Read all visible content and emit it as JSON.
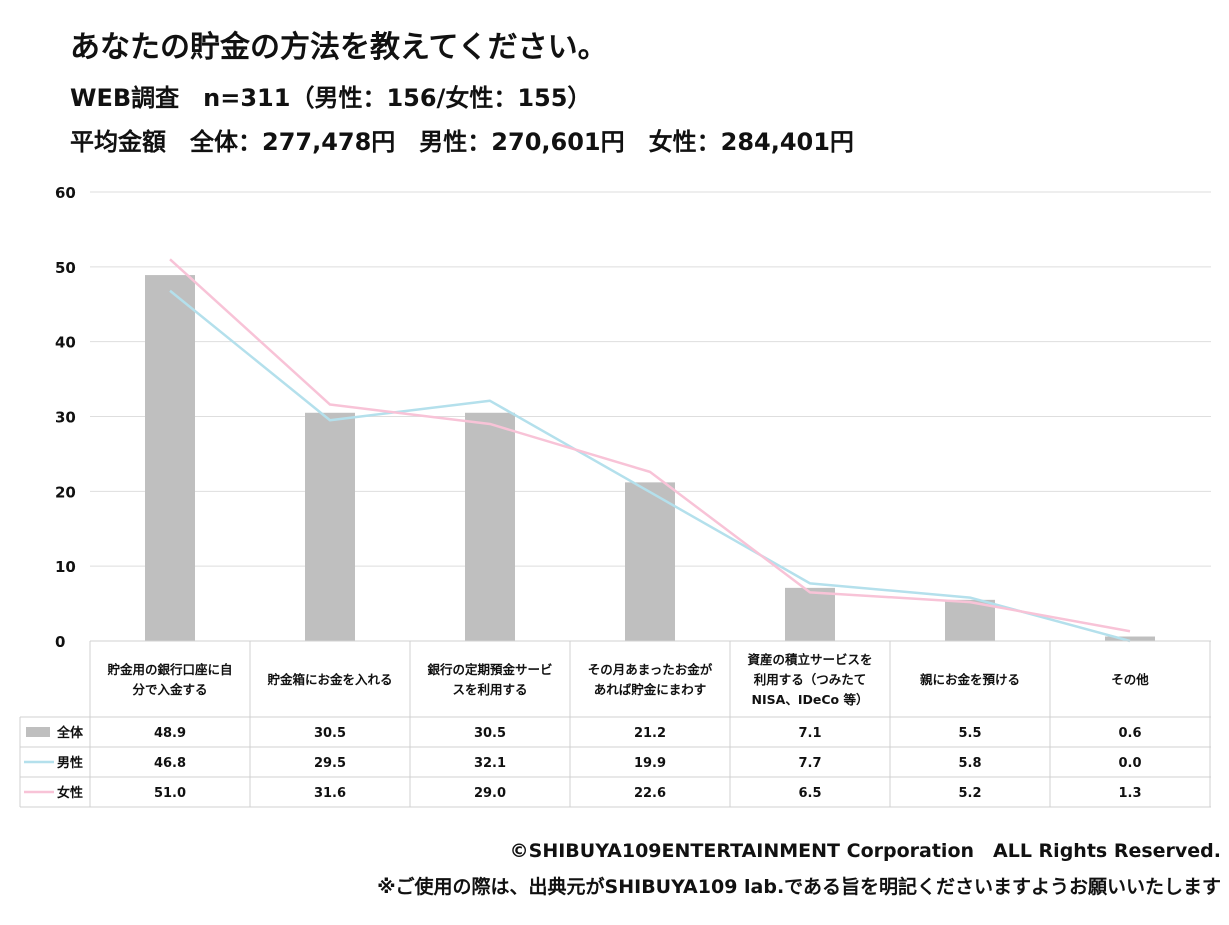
{
  "header": {
    "title": "あなたの貯金の方法を教えてください。",
    "survey": "WEB調査　n=311（男性：156/女性：155）",
    "average": "平均金額　全体：277,478円　男性：270,601円　女性：284,401円"
  },
  "chart_data": {
    "type": "bar",
    "ylim": [
      0,
      60
    ],
    "yticks": [
      "0",
      "10",
      "20",
      "30",
      "40",
      "50",
      "60"
    ],
    "grid": true,
    "categories": [
      [
        "貯金用の銀行口座に自",
        "分で入金する"
      ],
      [
        "貯金箱にお金を入れる"
      ],
      [
        "銀行の定期預金サービ",
        "スを利用する"
      ],
      [
        "その月あまったお金が",
        "あれば貯金にまわす"
      ],
      [
        "資産の積立サービスを",
        "利用する（つみたて",
        "NISA、IDeCo 等）"
      ],
      [
        "親にお金を預ける"
      ],
      [
        "その他"
      ]
    ],
    "series": [
      {
        "name": "全体",
        "type": "bar",
        "color": "#bfbfbf",
        "values": [
          48.9,
          30.5,
          30.5,
          21.2,
          7.1,
          5.5,
          0.6
        ],
        "labels": [
          "48.9",
          "30.5",
          "30.5",
          "21.2",
          "7.1",
          "5.5",
          "0.6"
        ]
      },
      {
        "name": "男性",
        "type": "line",
        "color": "#b4e0ec",
        "values": [
          46.8,
          29.5,
          32.1,
          19.9,
          7.7,
          5.8,
          0.0
        ],
        "labels": [
          "46.8",
          "29.5",
          "32.1",
          "19.9",
          "7.7",
          "5.8",
          "0.0"
        ]
      },
      {
        "name": "女性",
        "type": "line",
        "color": "#f8c3d7",
        "values": [
          51.0,
          31.6,
          29.0,
          22.6,
          6.5,
          5.2,
          1.3
        ],
        "labels": [
          "51.0",
          "31.6",
          "29.0",
          "22.6",
          "6.5",
          "5.2",
          "1.3"
        ]
      }
    ]
  },
  "footer": {
    "copyright": "©SHIBUYA109ENTERTAINMENT Corporation　ALL Rights Reserved.",
    "note": "※ご使用の際は、出典元がSHIBUYA109 lab.である旨を明記くださいますようお願いいたします"
  }
}
